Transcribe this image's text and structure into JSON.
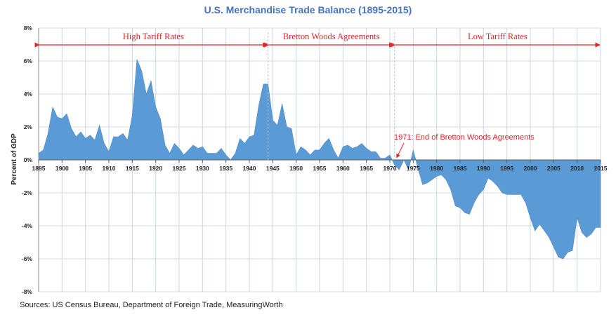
{
  "chart_data": {
    "type": "area",
    "title": "U.S. Merchandise Trade Balance (1895-2015)",
    "ylabel": "Percent of GDP",
    "xlabel": "",
    "source": "Sources: US Census Bureau, Department of Foreign Trade, MeasuringWorth",
    "xlim": [
      1895,
      2015
    ],
    "ylim": [
      -8,
      8
    ],
    "x_ticks": [
      1895,
      1900,
      1905,
      1910,
      1915,
      1920,
      1925,
      1930,
      1935,
      1940,
      1945,
      1950,
      1955,
      1960,
      1965,
      1970,
      1975,
      1980,
      1985,
      1990,
      1995,
      2000,
      2005,
      2010,
      2015
    ],
    "y_ticks": [
      -8,
      -6,
      -4,
      -2,
      0,
      2,
      4,
      6,
      8
    ],
    "y_tick_labels": [
      "-8%",
      "-6%",
      "-4%",
      "-2%",
      "0%",
      "2%",
      "4%",
      "6%",
      "8%"
    ],
    "grid": true,
    "fill_color": "#5b9bd5",
    "accent_color": "#e3242b",
    "title_color": "#4472c4",
    "series": [
      {
        "x": [
          1895,
          1896,
          1897,
          1898,
          1899,
          1900,
          1901,
          1902,
          1903,
          1904,
          1905,
          1906,
          1907,
          1908,
          1909,
          1910,
          1911,
          1912,
          1913,
          1914,
          1915,
          1916,
          1917,
          1918,
          1919,
          1920,
          1921,
          1922,
          1923,
          1924,
          1925,
          1926,
          1927,
          1928,
          1929,
          1930,
          1931,
          1932,
          1933,
          1934,
          1935,
          1936,
          1937,
          1938,
          1939,
          1940,
          1941,
          1942,
          1943,
          1944,
          1945,
          1946,
          1947,
          1948,
          1949,
          1950,
          1951,
          1952,
          1953,
          1954,
          1955,
          1956,
          1957,
          1958,
          1959,
          1960,
          1961,
          1962,
          1963,
          1964,
          1965,
          1966,
          1967,
          1968,
          1969,
          1970,
          1971,
          1972,
          1973,
          1974,
          1975,
          1976,
          1977,
          1978,
          1979,
          1980,
          1981,
          1982,
          1983,
          1984,
          1985,
          1986,
          1987,
          1988,
          1989,
          1990,
          1991,
          1992,
          1993,
          1994,
          1995,
          1996,
          1997,
          1998,
          1999,
          2000,
          2001,
          2002,
          2003,
          2004,
          2005,
          2006,
          2007,
          2008,
          2009,
          2010,
          2011,
          2012,
          2013,
          2014,
          2015
        ],
        "values": [
          0.4,
          0.6,
          1.6,
          3.2,
          2.6,
          2.5,
          2.8,
          1.9,
          1.4,
          1.7,
          1.3,
          1.5,
          1.2,
          2.1,
          1.0,
          0.5,
          1.4,
          1.4,
          1.6,
          1.2,
          2.7,
          6.1,
          5.4,
          4.0,
          4.8,
          3.2,
          2.5,
          0.9,
          0.4,
          1.0,
          0.7,
          0.3,
          0.6,
          0.9,
          0.7,
          0.8,
          0.4,
          0.4,
          0.4,
          0.7,
          0.3,
          0.0,
          0.4,
          1.3,
          1.0,
          1.4,
          1.5,
          3.3,
          4.6,
          4.6,
          2.4,
          2.1,
          3.4,
          2.0,
          1.9,
          0.3,
          0.8,
          0.6,
          0.3,
          0.6,
          0.6,
          1.0,
          1.3,
          0.6,
          0.1,
          0.8,
          0.9,
          0.7,
          0.8,
          1.0,
          0.7,
          0.5,
          0.5,
          0.1,
          0.1,
          0.3,
          -0.3,
          -0.6,
          0.0,
          -0.6,
          0.6,
          -0.5,
          -1.5,
          -1.4,
          -1.2,
          -1.0,
          -0.9,
          -1.2,
          -1.8,
          -2.8,
          -2.9,
          -3.2,
          -3.3,
          -2.6,
          -2.1,
          -1.8,
          -1.1,
          -1.3,
          -1.6,
          -2.0,
          -2.1,
          -2.1,
          -2.1,
          -2.1,
          -2.6,
          -3.5,
          -4.3,
          -3.9,
          -4.3,
          -4.7,
          -5.3,
          -5.9,
          -6.0,
          -5.6,
          -5.5,
          -3.5,
          -4.4,
          -4.7,
          -4.5,
          -4.1,
          -4.1
        ]
      }
    ],
    "eras": [
      {
        "label": "High Tariff Rates",
        "start": 1895,
        "end": 1944
      },
      {
        "label": "Bretton Woods Agreements",
        "start": 1944,
        "end": 1971
      },
      {
        "label": "Low Tariff Rates",
        "start": 1971,
        "end": 2015
      }
    ],
    "annotation": {
      "text": "1971: End of Bretton Woods Agreements",
      "year": 1971
    }
  }
}
